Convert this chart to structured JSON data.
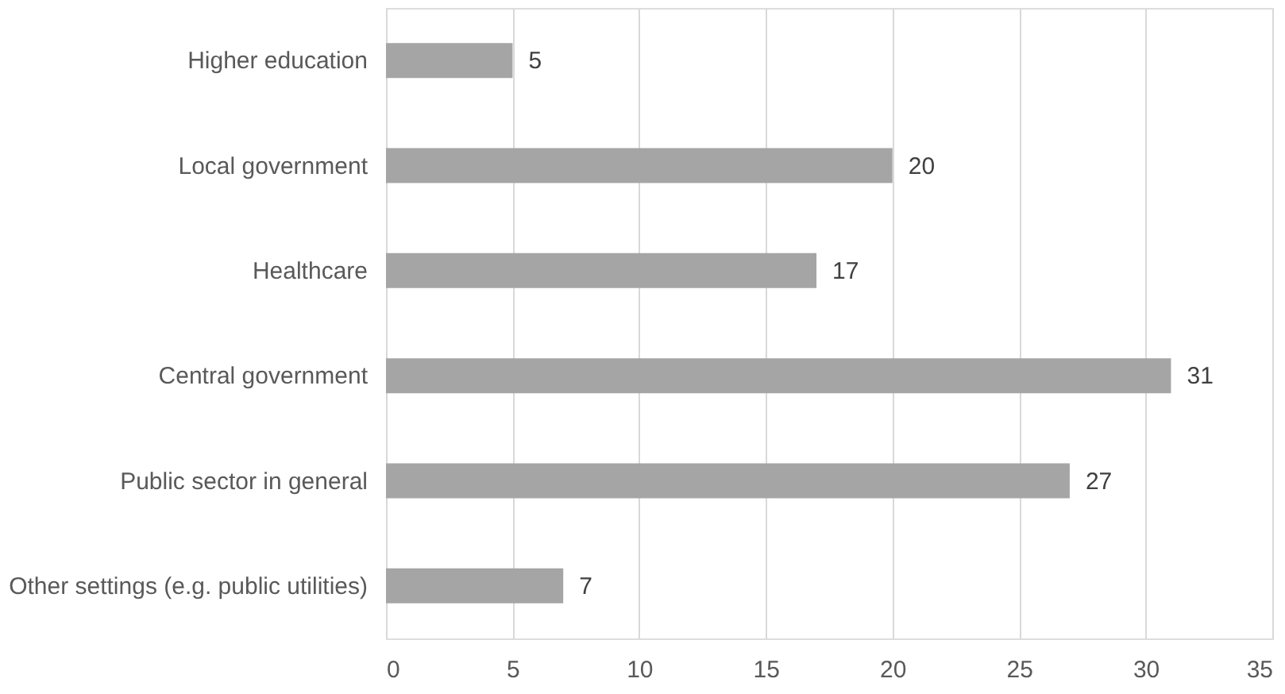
{
  "chart_data": {
    "type": "bar",
    "orientation": "horizontal",
    "categories": [
      "Higher education",
      "Local government",
      "Healthcare",
      "Central government",
      "Public sector in general",
      "Other settings (e.g. public utilities)"
    ],
    "values": [
      5,
      20,
      17,
      31,
      27,
      7
    ],
    "color": "#a5a5a5",
    "xlim": [
      0,
      35
    ],
    "xticks": [
      0,
      5,
      10,
      15,
      20,
      25,
      30,
      35
    ],
    "grid": "x",
    "data_labels": true
  }
}
